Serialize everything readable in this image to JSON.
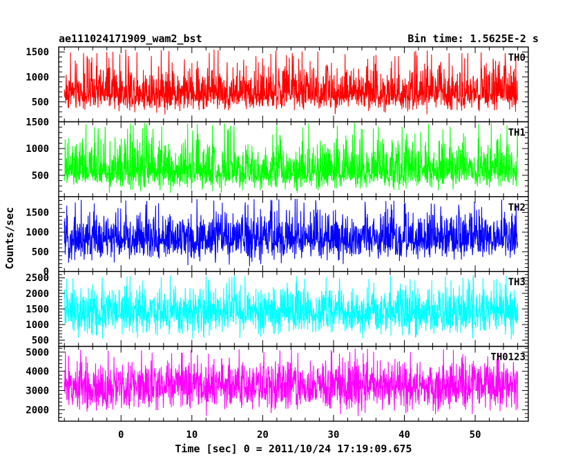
{
  "chart_data": {
    "type": "line",
    "title": "ae111024171909_wam2_bst",
    "subtitle": "Bin time: 1.5625E-2 s",
    "xlabel": "Time [sec] 0 = 2011/10/24 17:19:09.675",
    "ylabel": "Counts/sec",
    "xlim": [
      -8.8,
      57.5
    ],
    "data_x_range": [
      -8.0,
      56.0
    ],
    "x_ticks": [
      0,
      10,
      20,
      30,
      40,
      50
    ],
    "x_tick_labels": [
      "0",
      "10",
      "20",
      "30",
      "40",
      "50"
    ],
    "grid": false,
    "panels": [
      {
        "name": "TH0",
        "color": "#ff0000",
        "ylim": [
          100,
          1600
        ],
        "y_ticks": [
          500,
          1000,
          1500
        ],
        "y_tick_labels": [
          "500",
          "1000",
          "1500"
        ],
        "approx_mean": 650,
        "approx_min": 200,
        "approx_max": 1550
      },
      {
        "name": "TH1",
        "color": "#00ff00",
        "ylim": [
          100,
          1500
        ],
        "y_ticks": [
          500,
          1000,
          1500
        ],
        "y_tick_labels": [
          "500",
          "1000",
          "1500"
        ],
        "approx_mean": 550,
        "approx_min": 150,
        "approx_max": 1500
      },
      {
        "name": "TH2",
        "color": "#0000ff",
        "ylim": [
          0,
          1900
        ],
        "y_ticks": [
          0,
          500,
          1000,
          1500
        ],
        "y_tick_labels": [
          "0",
          "500",
          "1000",
          "1500"
        ],
        "approx_mean": 800,
        "approx_min": 100,
        "approx_max": 1850
      },
      {
        "name": "TH3",
        "color": "#00ffff",
        "ylim": [
          300,
          2700
        ],
        "y_ticks": [
          500,
          1000,
          1500,
          2000,
          2500
        ],
        "y_tick_labels": [
          "500",
          "1000",
          "1500",
          "2000",
          "2500"
        ],
        "approx_mean": 1350,
        "approx_min": 400,
        "approx_max": 2600
      },
      {
        "name": "TH0123",
        "color": "#ff00ff",
        "ylim": [
          1400,
          5300
        ],
        "y_ticks": [
          2000,
          3000,
          4000,
          5000
        ],
        "y_tick_labels": [
          "2000",
          "3000",
          "4000",
          "5000"
        ],
        "approx_mean": 3200,
        "approx_min": 1500,
        "approx_max": 5200
      }
    ]
  }
}
